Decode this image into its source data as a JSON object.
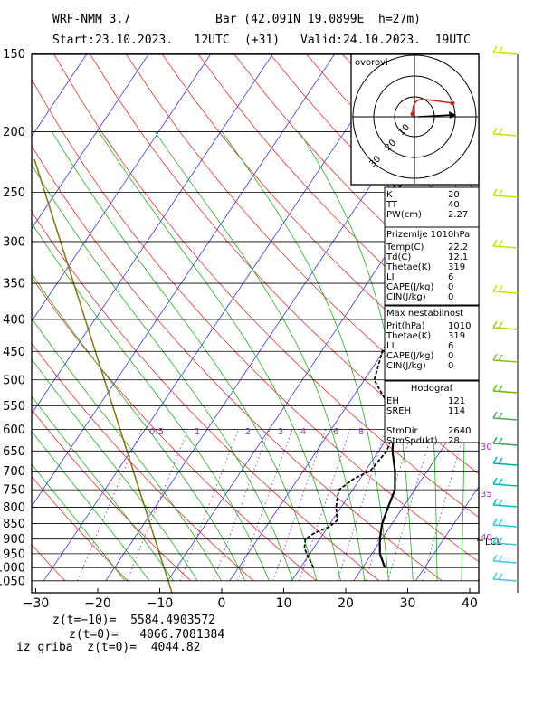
{
  "header": {
    "model": "WRF-NMM 3.7",
    "station": "Bar (42.091N 19.0899E  h=27m)",
    "start": "Start:23.10.2023.   12UTC",
    "lead": "(+31)",
    "valid": "Valid:24.10.2023.  19UTC"
  },
  "chart_data": {
    "type": "line",
    "title": "",
    "xlabel": "",
    "ylabel": "",
    "x_ticks": [
      "−30",
      "−20",
      "−10",
      "0",
      "10",
      "20",
      "30",
      "40"
    ],
    "p_ticks": [
      "150",
      "200",
      "250",
      "300",
      "350",
      "400",
      "450",
      "500",
      "550",
      "600",
      "650",
      "700",
      "750",
      "800",
      "850",
      "900",
      "950",
      "1000",
      "1050"
    ],
    "xlim": [
      -30,
      42
    ],
    "plim": [
      1050,
      150
    ],
    "series": [
      {
        "kind": "temperature",
        "color": "#000000",
        "points": [
          [
            1000,
            23.6
          ],
          [
            950,
            21.3
          ],
          [
            900,
            19.7
          ],
          [
            850,
            18.4
          ],
          [
            800,
            17.6
          ],
          [
            750,
            16.8
          ],
          [
            700,
            14.8
          ],
          [
            650,
            12.2
          ],
          [
            600,
            10.1
          ],
          [
            550,
            7.9
          ],
          [
            500,
            4.8
          ],
          [
            450,
            1.8
          ],
          [
            400,
            -1.2
          ],
          [
            350,
            -4.6
          ],
          [
            300,
            -9.0
          ],
          [
            250,
            -15.5
          ],
          [
            200,
            -21.5
          ],
          [
            150,
            -21.5
          ]
        ]
      },
      {
        "kind": "dewpoint",
        "color": "#000000",
        "dashed": true,
        "points": [
          [
            1000,
            12.1
          ],
          [
            960,
            10.0
          ],
          [
            930,
            8.5
          ],
          [
            900,
            7.7
          ],
          [
            880,
            8.5
          ],
          [
            860,
            10.2
          ],
          [
            840,
            10.8
          ],
          [
            800,
            9.2
          ],
          [
            770,
            8.3
          ],
          [
            750,
            7.8
          ],
          [
            720,
            9.0
          ],
          [
            700,
            10.8
          ],
          [
            650,
            11.3
          ],
          [
            600,
            10.3
          ],
          [
            550,
            6.7
          ],
          [
            500,
            1.6
          ],
          [
            450,
            -0.2
          ],
          [
            400,
            -0.9
          ],
          [
            350,
            -1.2
          ],
          [
            300,
            -3.2
          ],
          [
            280,
            -6.8
          ],
          [
            260,
            -13.0
          ],
          [
            250,
            -15.0
          ],
          [
            200,
            -16.5
          ],
          [
            150,
            -3.2
          ]
        ]
      }
    ],
    "mixing_ratio_labels": [
      "0.5",
      "1",
      "2",
      "3",
      "4",
      "6",
      "8"
    ],
    "wind_speed_labels": [
      "30",
      "35",
      "40"
    ],
    "lcl_label": "LCL",
    "hodograph": {
      "label": "ovorovi",
      "ring_labels": [
        "10",
        "20",
        "30"
      ]
    },
    "indices": [
      {
        "rows": [
          [
            "K",
            "20"
          ],
          [
            "TT",
            "40"
          ],
          [
            "PW(cm)",
            "2.27"
          ]
        ]
      },
      {
        "title": "Prizemlje 1010hPa",
        "rows": [
          [
            "Temp(C)",
            "22.2"
          ],
          [
            "Td(C)",
            "12.1"
          ],
          [
            "Thetae(K)",
            "319"
          ],
          [
            "LI",
            "6"
          ],
          [
            "CAPE(J/kg)",
            "0"
          ],
          [
            "CIN(J/kg)",
            "0"
          ]
        ]
      },
      {
        "title": "Max nestabilnost",
        "rows": [
          [
            "Prit(hPa)",
            "1010"
          ],
          [
            "Thetae(K)",
            "319"
          ],
          [
            "LI",
            "6"
          ],
          [
            "CAPE(J/kg)",
            "0"
          ],
          [
            "CIN(J/kg)",
            "0"
          ]
        ]
      },
      {
        "title": "Hodograf",
        "rows": [
          [
            "EH",
            "121"
          ],
          [
            "SREH",
            "114"
          ],
          [
            "",
            ""
          ],
          [
            "StmDir",
            "2640"
          ],
          [
            "StmSpd(kt)",
            "28"
          ]
        ]
      }
    ]
  },
  "footer": {
    "z1": "z(t=−10)=  5584.4903572",
    "z2": "z(t=0)=   4066.7081384",
    "z3": "iz griba  z(t=0)=  4044.82"
  }
}
